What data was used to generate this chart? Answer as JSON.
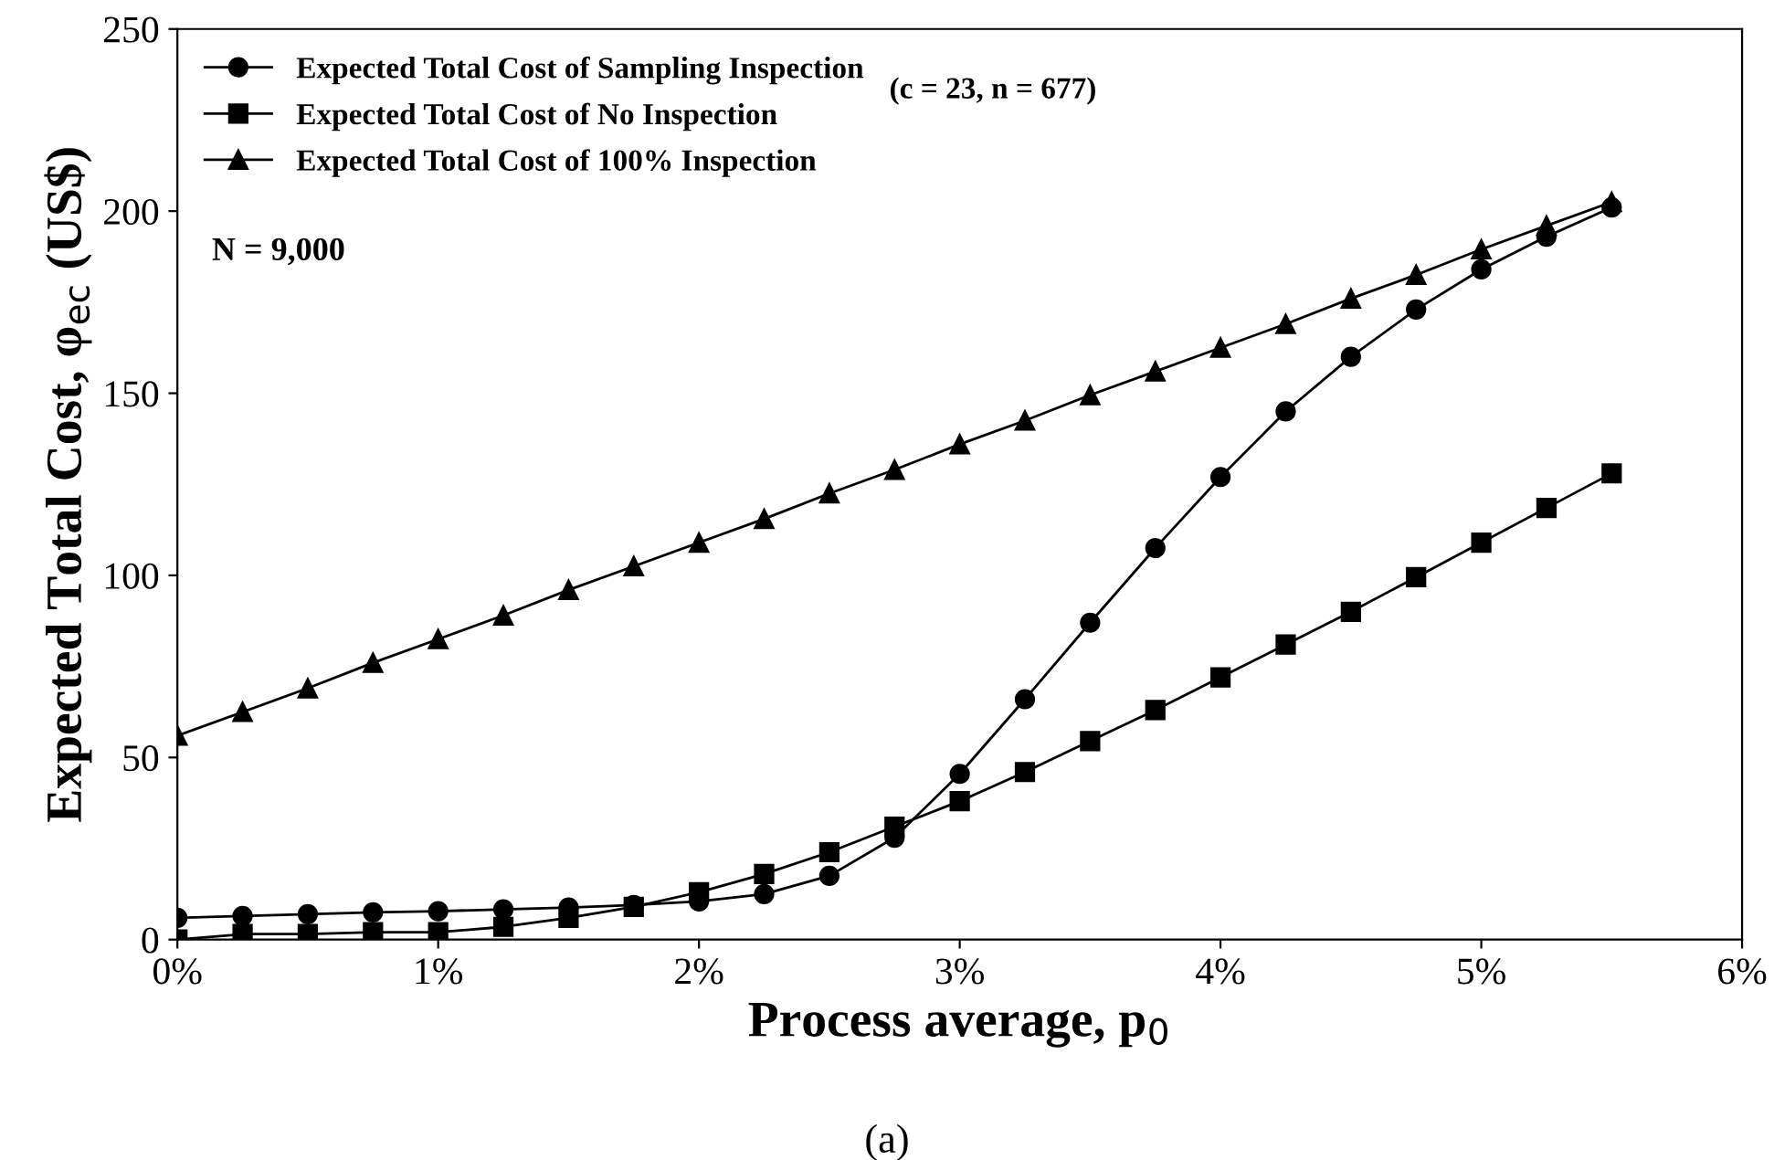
{
  "chart_data": {
    "type": "line",
    "xlabel": "Process average, p$_{0}$",
    "ylabel": "Expected Total Cost, φ$_{ec}$ (US$)",
    "x": [
      0,
      0.25,
      0.5,
      0.75,
      1,
      1.25,
      1.5,
      1.75,
      2,
      2.25,
      2.5,
      2.75,
      3,
      3.25,
      3.5,
      3.75,
      4,
      4.25,
      4.5,
      4.75,
      5,
      5.25,
      5.5
    ],
    "series": [
      {
        "name": "Expected Total Cost of Sampling Inspection",
        "color": "#000000",
        "marker": "circle",
        "values": [
          6,
          6.5,
          7,
          7.5,
          7.8,
          8.3,
          8.8,
          9.5,
          10.5,
          12.5,
          17.5,
          28,
          45.5,
          66,
          87,
          107.5,
          127,
          145,
          160,
          173,
          184,
          193,
          201
        ]
      },
      {
        "name": "Expected Total Cost of No Inspection",
        "color": "#000000",
        "marker": "square",
        "values": [
          0,
          1.5,
          1.5,
          2,
          2,
          3.5,
          6,
          9,
          13,
          18,
          24,
          31,
          38,
          46,
          54.5,
          63,
          72,
          81,
          90,
          99.5,
          109,
          118.5,
          128
        ]
      },
      {
        "name": "Expected Total Cost of 100% Inspection",
        "color": "#000000",
        "marker": "triangle",
        "values": [
          56,
          62.5,
          69,
          76,
          82.5,
          89,
          96,
          102.5,
          109,
          115.5,
          122.5,
          129,
          136,
          142.5,
          149.5,
          156,
          162.5,
          169,
          176,
          182.5,
          189.5,
          196,
          202.5
        ]
      }
    ],
    "xlim": [
      0,
      6
    ],
    "xticks": [
      {
        "value": 0,
        "label": "0%"
      },
      {
        "value": 1,
        "label": "1%"
      },
      {
        "value": 2,
        "label": "2%"
      },
      {
        "value": 3,
        "label": "3%"
      },
      {
        "value": 4,
        "label": "4%"
      },
      {
        "value": 5,
        "label": "5%"
      },
      {
        "value": 6,
        "label": "6%"
      }
    ],
    "ylim": [
      0,
      250
    ],
    "yticks": [
      0,
      50,
      100,
      150,
      200,
      250
    ],
    "grid": false,
    "legend": "top left",
    "line_style": "solid",
    "annotations": [
      "(c = 23, n = 677)",
      "N = 9,000",
      "(a)"
    ]
  }
}
